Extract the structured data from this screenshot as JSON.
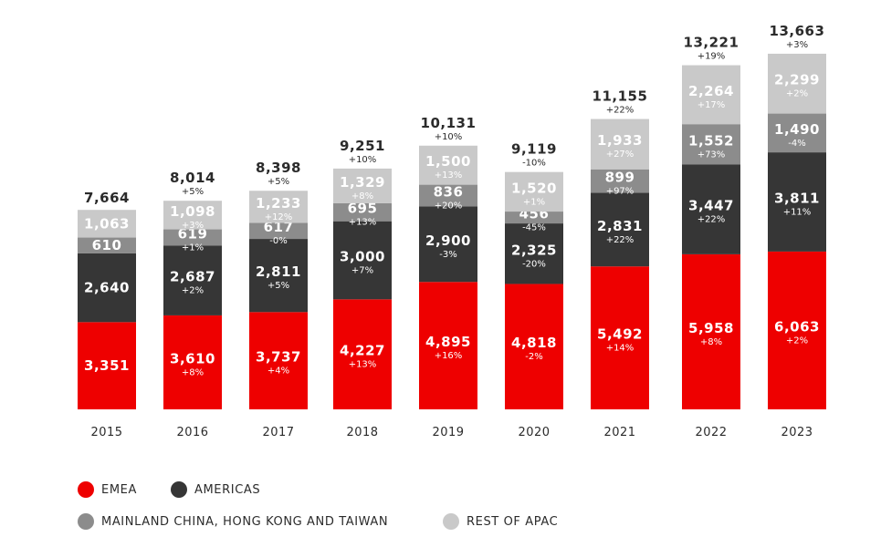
{
  "chart_data": {
    "type": "bar",
    "stacked": true,
    "categories": [
      "2015",
      "2016",
      "2017",
      "2018",
      "2019",
      "2020",
      "2021",
      "2022",
      "2023"
    ],
    "series": [
      {
        "name": "EMEA",
        "color": "#ee0000",
        "values": [
          3351,
          3610,
          3737,
          4227,
          4895,
          4818,
          5492,
          5958,
          6063
        ],
        "value_labels": [
          "3,351",
          "3,610",
          "3,737",
          "4,227",
          "4,895",
          "4,818",
          "5,492",
          "5,958",
          "6,063"
        ],
        "growth_labels": [
          "",
          "+8%",
          "+4%",
          "+13%",
          "+16%",
          "-2%",
          "+14%",
          "+8%",
          "+2%"
        ]
      },
      {
        "name": "AMERICAS",
        "color": "#363636",
        "values": [
          2640,
          2687,
          2811,
          3000,
          2900,
          2325,
          2831,
          3447,
          3811
        ],
        "value_labels": [
          "2,640",
          "2,687",
          "2,811",
          "3,000",
          "2,900",
          "2,325",
          "2,831",
          "3,447",
          "3,811"
        ],
        "growth_labels": [
          "",
          "+2%",
          "+5%",
          "+7%",
          "-3%",
          "-20%",
          "+22%",
          "+22%",
          "+11%"
        ]
      },
      {
        "name": "MAINLAND CHINA, HONG KONG AND TAIWAN",
        "color": "#8c8c8c",
        "values": [
          610,
          619,
          617,
          695,
          836,
          456,
          899,
          1552,
          1490
        ],
        "value_labels": [
          "610",
          "619",
          "617",
          "695",
          "836",
          "456",
          "899",
          "1,552",
          "1,490"
        ],
        "growth_labels": [
          "",
          "+1%",
          "-0%",
          "+13%",
          "+20%",
          "-45%",
          "+97%",
          "+73%",
          "-4%"
        ]
      },
      {
        "name": "REST OF APAC",
        "color": "#c9c9c9",
        "values": [
          1063,
          1098,
          1233,
          1329,
          1500,
          1520,
          1933,
          2264,
          2299
        ],
        "value_labels": [
          "1,063",
          "1,098",
          "1,233",
          "1,329",
          "1,500",
          "1,520",
          "1,933",
          "2,264",
          "2,299"
        ],
        "growth_labels": [
          "",
          "+3%",
          "+12%",
          "+8%",
          "+13%",
          "+1%",
          "+27%",
          "+17%",
          "+2%"
        ]
      }
    ],
    "totals": [
      7664,
      8014,
      8398,
      9251,
      10131,
      9119,
      11155,
      13221,
      13663
    ],
    "total_labels": [
      "7,664",
      "8,014",
      "8,398",
      "9,251",
      "10,131",
      "9,119",
      "11,155",
      "13,221",
      "13,663"
    ],
    "total_growth_labels": [
      "",
      "+5%",
      "+5%",
      "+10%",
      "+10%",
      "-10%",
      "+22%",
      "+19%",
      "+3%"
    ],
    "ylim": [
      0,
      14000
    ],
    "grid": false,
    "legend_position": "bottom-left"
  }
}
